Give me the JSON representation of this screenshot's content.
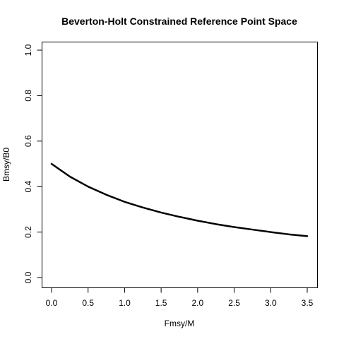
{
  "chart_data": {
    "type": "line",
    "title": "Beverton-Holt Constrained Reference Point Space",
    "xlabel": "Fmsy/M",
    "ylabel": "Bmsy/B0",
    "xlim": [
      0,
      3.5
    ],
    "ylim": [
      0,
      1
    ],
    "xticks": [
      "0.0",
      "0.5",
      "1.0",
      "1.5",
      "2.0",
      "2.5",
      "3.0",
      "3.5"
    ],
    "yticks": [
      "0.0",
      "0.2",
      "0.4",
      "0.6",
      "0.8",
      "1.0"
    ],
    "grid": false,
    "series": [
      {
        "color": "#000000",
        "x": [
          0.0,
          0.25,
          0.5,
          0.75,
          1.0,
          1.25,
          1.5,
          1.75,
          2.0,
          2.25,
          2.5,
          2.75,
          3.0,
          3.25,
          3.5
        ],
        "y": [
          0.5,
          0.444,
          0.4,
          0.364,
          0.333,
          0.308,
          0.286,
          0.267,
          0.25,
          0.235,
          0.222,
          0.211,
          0.2,
          0.19,
          0.182
        ]
      }
    ]
  }
}
